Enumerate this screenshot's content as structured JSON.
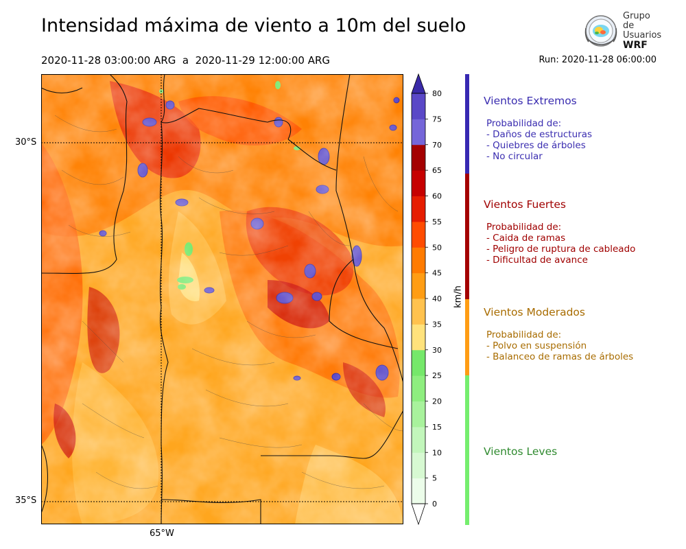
{
  "header": {
    "title": "Intensidad máxima de viento a 10m del suelo",
    "period": "2020-11-28 03:00:00 ARG  a  2020-11-29 12:00:00 ARG",
    "run": "Run: 2020-11-28 06:00:00"
  },
  "logo": {
    "line1": "Grupo de",
    "line2": "Usuarios",
    "line3": "WRF"
  },
  "map": {
    "lat_labels": [
      "30°S",
      "35°S"
    ],
    "lon_labels": [
      "65°W"
    ]
  },
  "colorbar": {
    "unit": "km/h",
    "ticks": [
      "0",
      "5",
      "10",
      "15",
      "20",
      "25",
      "30",
      "35",
      "40",
      "45",
      "50",
      "55",
      "60",
      "65",
      "70",
      "75",
      "80"
    ],
    "colors": [
      "#ecfdea",
      "#d7f9d2",
      "#c2f6bb",
      "#a8f29c",
      "#8eee7f",
      "#75e86a",
      "#ffe27c",
      "#ffc24e",
      "#ff9d14",
      "#ff7b00",
      "#ff4c00",
      "#e61d00",
      "#c60000",
      "#a40000",
      "#7566d9",
      "#5a48c7",
      "#4132b0"
    ],
    "over_color": "#3a2aa8",
    "under_color": "#ffffff"
  },
  "legend": [
    {
      "title": "Vientos Extremos",
      "color": "#3a2db0",
      "bar_color": "#3729b2",
      "lines": [
        "Probabilidad de:",
        "- Daños de estructuras",
        "- Quiebres de árboles",
        "- No circular"
      ]
    },
    {
      "title": "Vientos Fuertes",
      "color": "#a00000",
      "bar_color": "#a40000",
      "lines": [
        "Probabilidad de:",
        "- Caida de ramas",
        "- Peligro de ruptura de cableado",
        "- Dificultad de avance"
      ]
    },
    {
      "title": "Vientos Moderados",
      "color": "#a86c00",
      "bar_color": "#ff9d14",
      "lines": [
        "Probabilidad de:",
        "- Polvo en suspensión",
        "- Balanceo de ramas de árboles"
      ]
    },
    {
      "title": "Vientos Leves",
      "color": "#2f8a2f",
      "bar_color": "#75ee6e",
      "lines": []
    }
  ]
}
